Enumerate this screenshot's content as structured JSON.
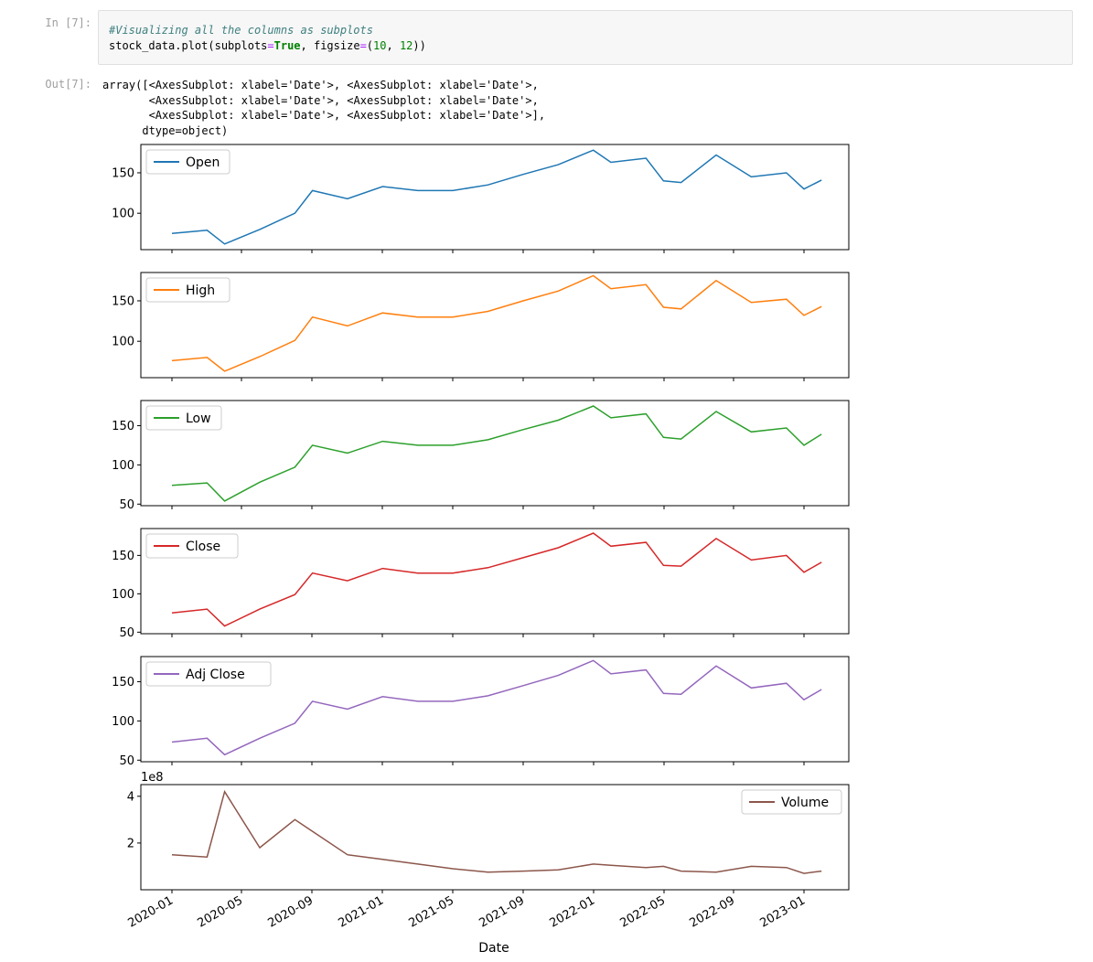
{
  "notebook": {
    "in_prompt": "In [7]:",
    "out_prompt": "Out[7]:",
    "code": {
      "comment": "#Visualizing all the columns as subplots",
      "line2_prefix": "stock_data.plot(subplots",
      "line2_eq1": "=",
      "line2_true": "True",
      "line2_mid": ", figsize",
      "line2_eq2": "=",
      "line2_paren_open": "(",
      "line2_num1": "10",
      "line2_comma": ", ",
      "line2_num2": "12",
      "line2_end": "))"
    },
    "output_lines": [
      "array([<AxesSubplot: xlabel='Date'>, <AxesSubplot: xlabel='Date'>,",
      "       <AxesSubplot: xlabel='Date'>, <AxesSubplot: xlabel='Date'>,",
      "       <AxesSubplot: xlabel='Date'>, <AxesSubplot: xlabel='Date'>],",
      "      dtype=object)"
    ]
  },
  "chart_data": {
    "type": "line",
    "xlabel": "Date",
    "x_ticks": [
      "2020-01",
      "2020-05",
      "2020-09",
      "2021-01",
      "2021-05",
      "2021-09",
      "2022-01",
      "2022-05",
      "2022-09",
      "2023-01"
    ],
    "x": [
      "2020-01",
      "2020-03",
      "2020-04",
      "2020-06",
      "2020-08",
      "2020-09",
      "2020-11",
      "2021-01",
      "2021-03",
      "2021-05",
      "2021-07",
      "2021-09",
      "2021-11",
      "2022-01",
      "2022-02",
      "2022-04",
      "2022-05",
      "2022-06",
      "2022-08",
      "2022-10",
      "2022-12",
      "2023-01",
      "2023-02"
    ],
    "subplots": [
      {
        "name": "Open",
        "color": "#1f77b4",
        "legend": "upper left",
        "ylim": [
          55,
          185
        ],
        "yticks": [
          "100",
          "150"
        ],
        "scale_label": "",
        "values": [
          75,
          79,
          62,
          80,
          100,
          128,
          118,
          133,
          128,
          128,
          135,
          148,
          160,
          178,
          163,
          168,
          140,
          138,
          172,
          145,
          150,
          130,
          141
        ]
      },
      {
        "name": "High",
        "color": "#ff7f0e",
        "legend": "upper left",
        "ylim": [
          55,
          185
        ],
        "yticks": [
          "100",
          "150"
        ],
        "scale_label": "",
        "values": [
          76,
          80,
          63,
          81,
          101,
          130,
          119,
          135,
          130,
          130,
          137,
          150,
          162,
          181,
          165,
          170,
          142,
          140,
          175,
          148,
          152,
          132,
          143
        ]
      },
      {
        "name": "Low",
        "color": "#2ca02c",
        "legend": "upper left",
        "ylim": [
          48,
          182
        ],
        "yticks": [
          "50",
          "100",
          "150"
        ],
        "scale_label": "",
        "values": [
          74,
          77,
          54,
          78,
          97,
          125,
          115,
          130,
          125,
          125,
          132,
          145,
          157,
          175,
          160,
          165,
          135,
          133,
          168,
          142,
          147,
          125,
          139
        ]
      },
      {
        "name": "Close",
        "color": "#d62728",
        "legend": "upper left",
        "ylim": [
          48,
          185
        ],
        "yticks": [
          "50",
          "100",
          "150"
        ],
        "scale_label": "",
        "values": [
          75,
          80,
          58,
          80,
          99,
          127,
          117,
          133,
          127,
          127,
          134,
          147,
          160,
          179,
          162,
          167,
          137,
          136,
          172,
          144,
          150,
          128,
          141
        ]
      },
      {
        "name": "Adj Close",
        "color": "#9467bd",
        "legend": "upper left",
        "ylim": [
          48,
          182
        ],
        "yticks": [
          "50",
          "100",
          "150"
        ],
        "scale_label": "",
        "values": [
          73,
          78,
          57,
          78,
          97,
          125,
          115,
          131,
          125,
          125,
          132,
          145,
          158,
          177,
          160,
          165,
          135,
          134,
          170,
          142,
          148,
          127,
          140
        ]
      },
      {
        "name": "Volume",
        "color": "#8c564b",
        "legend": "upper right",
        "ylim": [
          0,
          450000000
        ],
        "yticks": [
          "2",
          "4"
        ],
        "scale_label": "1e8",
        "values": [
          150000000,
          140000000,
          420000000,
          180000000,
          300000000,
          250000000,
          150000000,
          130000000,
          110000000,
          90000000,
          75000000,
          80000000,
          85000000,
          110000000,
          105000000,
          95000000,
          100000000,
          80000000,
          75000000,
          100000000,
          95000000,
          70000000,
          80000000
        ]
      }
    ]
  }
}
